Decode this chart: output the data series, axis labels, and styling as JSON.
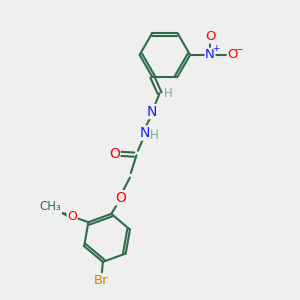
{
  "bg_color": "#efefef",
  "bond_color": "#2d6b4a",
  "bond_width": 1.5,
  "atom_colors": {
    "C": "#2d6b4a",
    "H": "#7aab8f",
    "N": "#1a1aff",
    "O": "#ff0000",
    "Br": "#cc8800"
  },
  "font_size": 8.5,
  "fig_size": [
    3.0,
    3.0
  ],
  "dpi": 100,
  "xlim": [
    0,
    10
  ],
  "ylim": [
    0,
    10
  ]
}
